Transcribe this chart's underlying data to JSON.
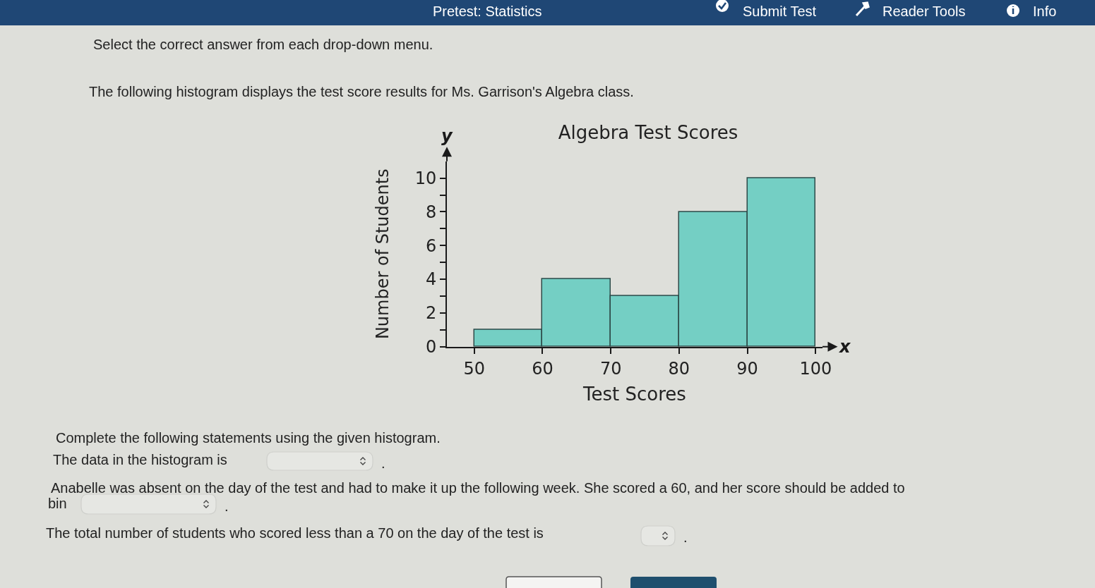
{
  "chart_data": {
    "type": "histogram",
    "title": "Algebra Test Scores",
    "xlabel": "Test Scores",
    "ylabel": "Number of Students",
    "bins": [
      50,
      60,
      70,
      80,
      90,
      100
    ],
    "values": [
      1,
      4,
      3,
      8,
      10
    ],
    "color": "#74cfc4",
    "xlim": [
      46,
      101
    ],
    "xticks": [
      50,
      60,
      70,
      80,
      90,
      100
    ],
    "ylim": [
      0,
      11
    ],
    "yticks": [
      0,
      {
        "value": 1,
        "label": null
      },
      2,
      {
        "value": 3,
        "label": null
      },
      4,
      {
        "value": 5,
        "label": null
      },
      6,
      {
        "value": 7,
        "label": null
      },
      8,
      {
        "value": 9,
        "label": null
      },
      10
    ],
    "annotations": [
      "Pretest: Statistics",
      "Submit Test",
      "Reader Tools",
      "Info",
      "Select the correct answer from each drop-down menu.",
      "The following histogram displays the test score results for Ms. Garrison's Algebra class.",
      "Complete the following statements using the given histogram.",
      "The data in the histogram is",
      ".",
      "Anabelle was absent on the day of the test and had to make it up the following week. She scored a 60, and her score should be added to",
      "bin",
      ".",
      "The total number of students who scored less than a 70 on the day of the test is",
      ".",
      "y",
      "x"
    ]
  }
}
